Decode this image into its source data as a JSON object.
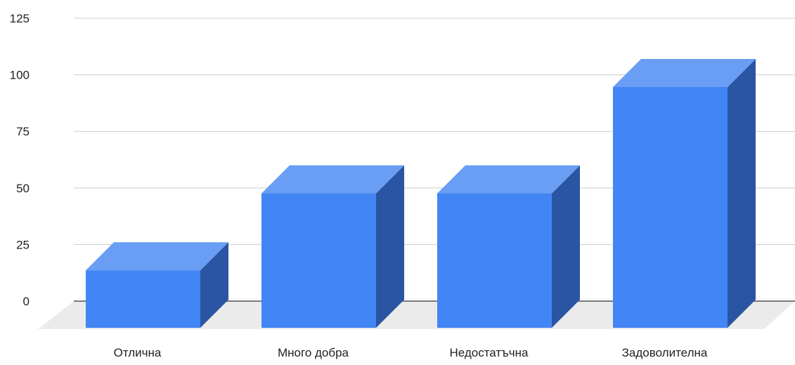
{
  "chart_data": {
    "type": "bar",
    "style": "3d",
    "categories": [
      "Отлична",
      "Много добра",
      "Недостатъчна",
      "Задоволителна"
    ],
    "values": [
      26,
      60,
      60,
      107
    ],
    "title": "",
    "xlabel": "",
    "ylabel": "",
    "ylim": [
      0,
      125
    ],
    "yticks": [
      0,
      25,
      50,
      75,
      100,
      125
    ],
    "ytick_labels": [
      "0",
      "25",
      "50",
      "75",
      "100",
      "125"
    ],
    "grid": true,
    "legend": "none",
    "colors": {
      "bar_front": "#4285f4",
      "bar_top": "#6a9ef5",
      "bar_side": "#2a55a3",
      "floor": "#ebebeb",
      "grid": "#cccccc",
      "baseline": "#333333"
    }
  }
}
